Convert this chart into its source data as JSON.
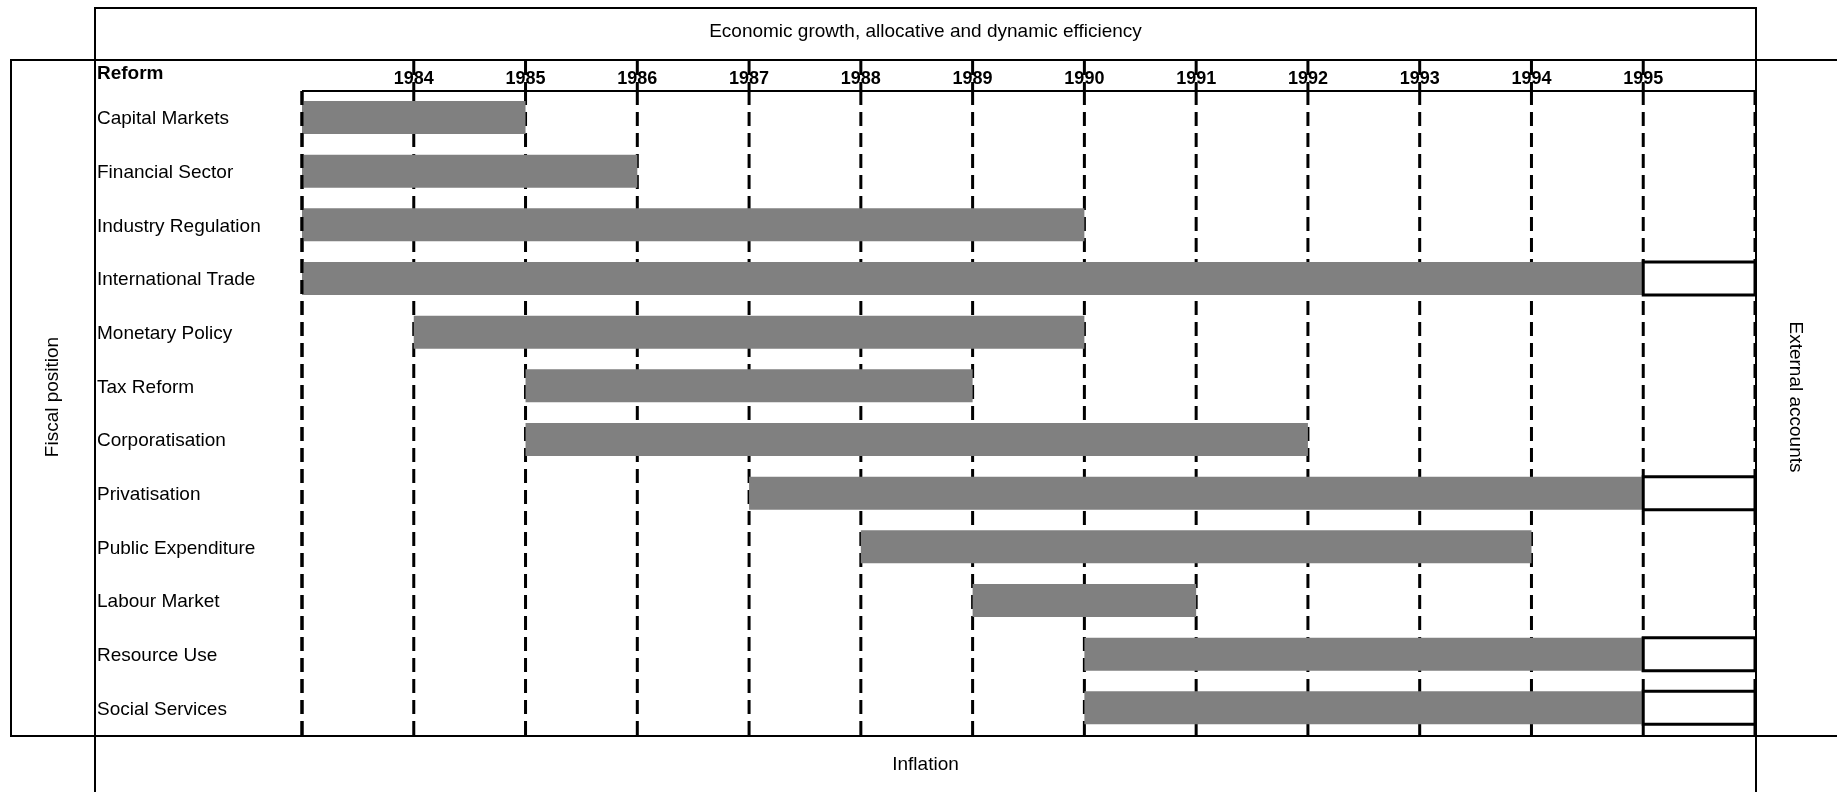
{
  "chart_data": {
    "type": "bar",
    "orientation": "horizontal",
    "ylabel": "Reform",
    "categories": [
      "Capital Markets",
      "Financial Sector",
      "Industry Regulation",
      "International Trade",
      "Monetary Policy",
      "Tax Reform",
      "Corporatisation",
      "Privatisation",
      "Public Expenditure",
      "Labour Market",
      "Resource Use",
      "Social Services"
    ],
    "series": [
      {
        "color": "#808080",
        "base": [
          1983,
          1983,
          1983,
          1983,
          1984,
          1985,
          1985,
          1987,
          1988,
          1989,
          1990,
          1990
        ],
        "values": [
          2,
          3,
          7,
          12,
          6,
          4,
          7,
          8,
          6,
          2,
          5,
          5
        ]
      },
      {
        "color": "#ffffff",
        "line_style": "solid",
        "base": [
          null,
          null,
          null,
          1995,
          null,
          null,
          null,
          1995,
          null,
          null,
          1995,
          1995
        ],
        "values": [
          null,
          null,
          null,
          1,
          null,
          null,
          null,
          1,
          null,
          null,
          1,
          1
        ]
      }
    ],
    "xlim": [
      1983,
      1996
    ],
    "xticks": [
      1984,
      1985,
      1986,
      1987,
      1988,
      1989,
      1990,
      1991,
      1992,
      1993,
      1994,
      1995
    ],
    "grid": "x",
    "annotations": [
      "Economic growth, allocative and dynamic efficiency",
      "Inflation",
      "Fiscal position",
      "External accounts"
    ]
  }
}
